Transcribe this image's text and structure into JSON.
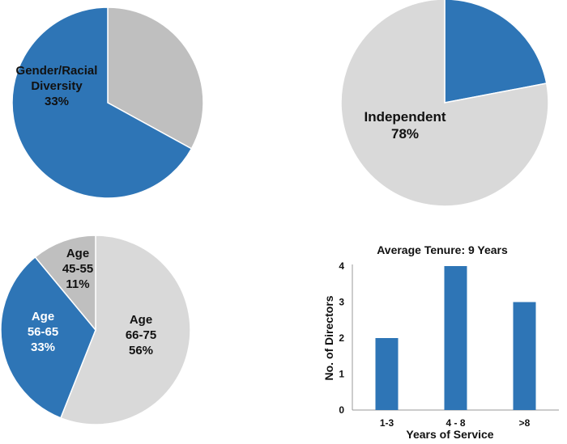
{
  "chart_data": [
    {
      "type": "pie",
      "slices": [
        {
          "label_lines": [
            "Gender/Racial",
            "Diversity",
            "33%"
          ],
          "value": 33,
          "color": "#bfbfbf",
          "text_color": "#111111"
        },
        {
          "label_lines": [],
          "value": 67,
          "color": "#2e75b6",
          "text_color": "#ffffff"
        }
      ]
    },
    {
      "type": "pie",
      "slices": [
        {
          "label_lines": [],
          "value": 22,
          "color": "#2e75b6",
          "text_color": "#ffffff"
        },
        {
          "label_lines": [
            "Independent",
            "78%"
          ],
          "value": 78,
          "color": "#d9d9d9",
          "text_color": "#111111"
        }
      ]
    },
    {
      "type": "pie",
      "slices": [
        {
          "label_lines": [
            "Age",
            "66-75",
            "56%"
          ],
          "value": 56,
          "color": "#d9d9d9",
          "text_color": "#111111"
        },
        {
          "label_lines": [
            "Age",
            "56-65",
            "33%"
          ],
          "value": 33,
          "color": "#2e75b6",
          "text_color": "#ffffff"
        },
        {
          "label_lines": [
            "Age",
            "45-55",
            "11%"
          ],
          "value": 11,
          "color": "#bfbfbf",
          "text_color": "#111111"
        }
      ]
    },
    {
      "type": "bar",
      "title": "Average Tenure:  9 Years",
      "xlabel": "Years of Service",
      "ylabel": "No. of Directors",
      "categories": [
        "1-3",
        "4 - 8",
        ">8"
      ],
      "values": [
        2,
        4,
        3
      ],
      "ylim": [
        0,
        4
      ],
      "yticks": [
        0,
        1,
        2,
        3,
        4
      ],
      "color": "#2e75b6",
      "grid": false
    }
  ]
}
